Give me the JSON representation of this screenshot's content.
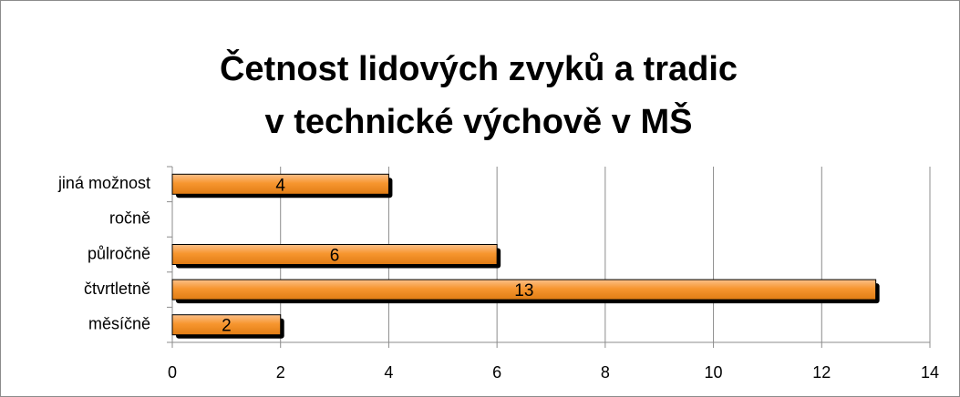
{
  "chart_data": {
    "type": "barh",
    "title": [
      "Četnost lidových zvyků a tradic",
      "v technické výchově v MŠ"
    ],
    "categories": [
      "měsíčně",
      "čtvrtletně",
      "půlročně",
      "ročně",
      "jiná možnost"
    ],
    "values": [
      2,
      13,
      6,
      null,
      4
    ],
    "color": "#f7962f",
    "xlim": [
      0,
      14
    ],
    "xticks": [
      0,
      2,
      4,
      6,
      8,
      10,
      12,
      14
    ],
    "grid": true
  }
}
